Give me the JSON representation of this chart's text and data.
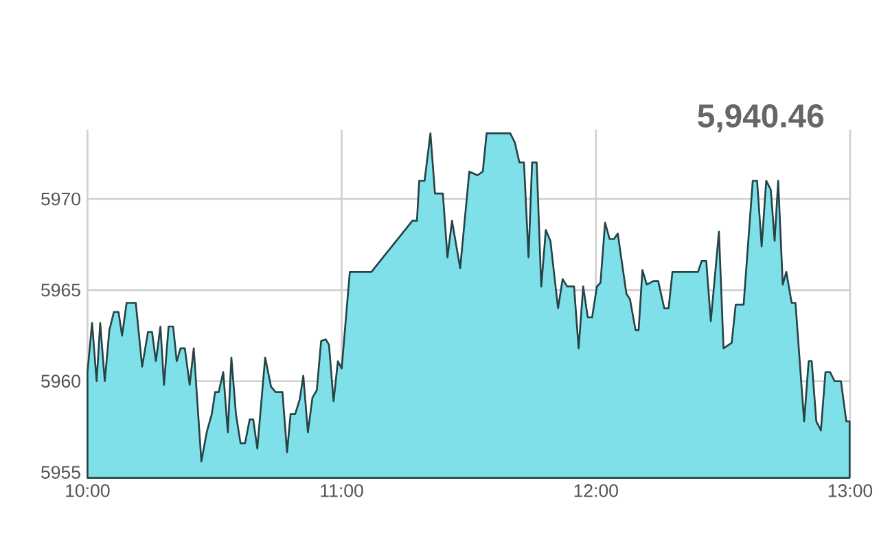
{
  "chart_data": {
    "type": "area",
    "annotations": [
      "5,940.46"
    ],
    "x": [
      10.0,
      10.018,
      10.036,
      10.05,
      10.068,
      10.086,
      10.104,
      10.122,
      10.136,
      10.154,
      10.19,
      10.215,
      10.238,
      10.254,
      10.269,
      10.287,
      10.301,
      10.319,
      10.337,
      10.351,
      10.366,
      10.383,
      10.402,
      10.418,
      10.448,
      10.469,
      10.489,
      10.502,
      10.516,
      10.534,
      10.552,
      10.566,
      10.584,
      10.602,
      10.62,
      10.638,
      10.652,
      10.668,
      10.699,
      10.722,
      10.74,
      10.767,
      10.785,
      10.799,
      10.817,
      10.835,
      10.849,
      10.867,
      10.885,
      10.902,
      10.919,
      10.937,
      10.95,
      10.968,
      10.985,
      11.0,
      11.032,
      11.117,
      11.278,
      11.296,
      11.305,
      11.326,
      11.349,
      11.367,
      11.398,
      11.416,
      11.434,
      11.466,
      11.502,
      11.534,
      11.555,
      11.57,
      11.663,
      11.681,
      11.699,
      11.717,
      11.735,
      11.749,
      11.767,
      11.785,
      11.803,
      11.821,
      11.851,
      11.869,
      11.887,
      11.914,
      11.932,
      11.95,
      11.968,
      11.985,
      12.004,
      12.018,
      12.036,
      12.054,
      12.071,
      12.086,
      12.12,
      12.134,
      12.156,
      12.168,
      12.183,
      12.2,
      12.227,
      12.245,
      12.269,
      12.286,
      12.301,
      12.402,
      12.416,
      12.434,
      12.452,
      12.484,
      12.502,
      12.534,
      12.55,
      12.581,
      12.617,
      12.634,
      12.652,
      12.67,
      12.688,
      12.703,
      12.717,
      12.735,
      12.749,
      12.77,
      12.785,
      12.819,
      12.837,
      12.849,
      12.867,
      12.885,
      12.903,
      12.921,
      12.939,
      12.964,
      12.985,
      12.998
    ],
    "series": [
      {
        "color": "#7fe0ea",
        "values": [
          5960.5,
          5963.2,
          5960.0,
          5963.2,
          5960.0,
          5962.8,
          5963.8,
          5963.8,
          5962.5,
          5964.3,
          5964.3,
          5960.8,
          5962.7,
          5962.7,
          5961.1,
          5963.0,
          5959.8,
          5963.0,
          5963.0,
          5961.1,
          5961.8,
          5961.8,
          5959.8,
          5961.8,
          5955.6,
          5957.2,
          5958.2,
          5959.4,
          5959.4,
          5960.5,
          5957.2,
          5961.3,
          5958.2,
          5956.6,
          5956.6,
          5957.9,
          5957.9,
          5956.3,
          5961.3,
          5959.7,
          5959.4,
          5959.4,
          5956.1,
          5958.2,
          5958.2,
          5959.0,
          5960.3,
          5957.2,
          5959.1,
          5959.5,
          5962.2,
          5962.3,
          5962.0,
          5958.9,
          5961.1,
          5960.7,
          5966.0,
          5966.0,
          5968.8,
          5968.8,
          5971.0,
          5971.0,
          5973.6,
          5970.3,
          5970.3,
          5966.8,
          5968.8,
          5966.2,
          5971.5,
          5971.3,
          5971.5,
          5973.6,
          5973.6,
          5973.1,
          5972.0,
          5972.0,
          5966.8,
          5972.0,
          5972.0,
          5965.2,
          5968.3,
          5967.7,
          5964.0,
          5965.6,
          5965.2,
          5965.2,
          5961.8,
          5965.2,
          5963.5,
          5963.5,
          5965.2,
          5965.4,
          5968.7,
          5967.8,
          5967.8,
          5968.1,
          5964.8,
          5964.5,
          5962.8,
          5962.8,
          5966.1,
          5965.3,
          5965.5,
          5965.5,
          5964.0,
          5964.0,
          5966.0,
          5966.0,
          5966.6,
          5966.6,
          5963.3,
          5968.2,
          5961.8,
          5962.1,
          5964.2,
          5964.2,
          5971.0,
          5971.0,
          5967.4,
          5971.0,
          5970.5,
          5967.7,
          5971.0,
          5965.3,
          5966.0,
          5964.3,
          5964.3,
          5957.8,
          5961.1,
          5961.1,
          5957.8,
          5957.3,
          5960.5,
          5960.5,
          5960.0,
          5960.0,
          5957.8,
          5957.8
        ]
      }
    ],
    "xlim": [
      10,
      13
    ],
    "xticks": [
      {
        "value": 10,
        "label": "10:00"
      },
      {
        "value": 11,
        "label": "11:00"
      },
      {
        "value": 12,
        "label": "12:00"
      },
      {
        "value": 13,
        "label": "13:00"
      }
    ],
    "ylim": [
      5954.7,
      5973.8
    ],
    "yticks": [
      5955,
      5960,
      5965,
      5970
    ],
    "grid": true
  }
}
